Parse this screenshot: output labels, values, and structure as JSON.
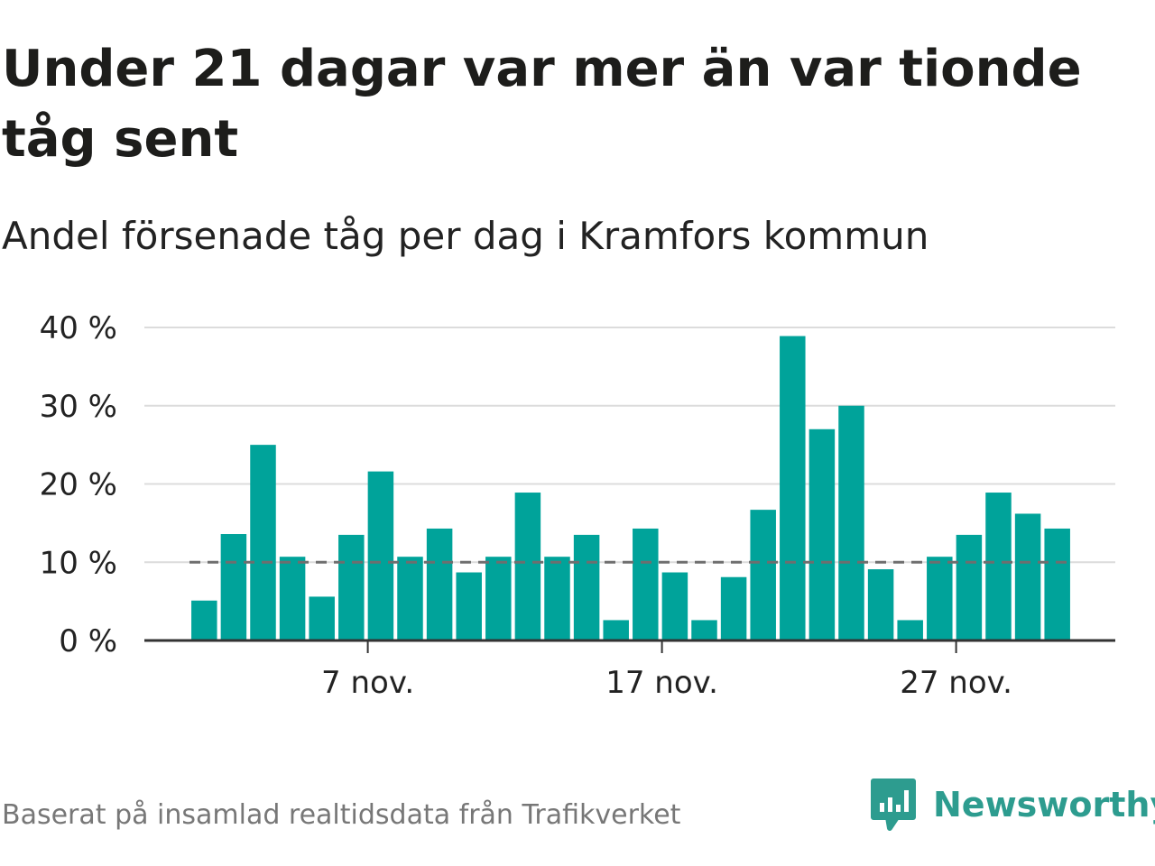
{
  "title": "Under 21 dagar var mer än var tionde tåg sent",
  "subtitle": "Andel försenade tåg per dag i Kramfors kommun",
  "source": "Baserat på insamlad realtidsdata från Trafikverket",
  "brand": {
    "name": "Newsworthy",
    "icon": "newsworthy-logo-icon",
    "color": "#2d9c8f"
  },
  "chart_data": {
    "type": "bar",
    "x": [
      "2023-11-01",
      "2023-11-02",
      "2023-11-03",
      "2023-11-04",
      "2023-11-05",
      "2023-11-06",
      "2023-11-07",
      "2023-11-08",
      "2023-11-09",
      "2023-11-10",
      "2023-11-11",
      "2023-11-12",
      "2023-11-13",
      "2023-11-14",
      "2023-11-15",
      "2023-11-16",
      "2023-11-17",
      "2023-11-18",
      "2023-11-19",
      "2023-11-20",
      "2023-11-21",
      "2023-11-22",
      "2023-11-23",
      "2023-11-24",
      "2023-11-25",
      "2023-11-26",
      "2023-11-27",
      "2023-11-28",
      "2023-11-29",
      "2023-11-30"
    ],
    "values": [
      5.1,
      13.6,
      25,
      10.7,
      5.6,
      13.5,
      21.6,
      10.7,
      14.3,
      8.7,
      10.7,
      18.9,
      10.7,
      13.5,
      2.6,
      14.3,
      8.7,
      2.6,
      8.1,
      16.7,
      38.9,
      27,
      30,
      9.1,
      2.6,
      10.7,
      13.5,
      18.9,
      16.2,
      14.3
    ],
    "ylim": [
      0,
      40
    ],
    "yticks": [
      0,
      10,
      20,
      30,
      40
    ],
    "ytick_labels": [
      "0 %",
      "10 %",
      "20 %",
      "30 %",
      "40 %"
    ],
    "xtick_dates": [
      "2023-11-07",
      "2023-11-17",
      "2023-11-27"
    ],
    "xtick_labels": [
      "7 nov.",
      "17 nov.",
      "27 nov."
    ],
    "reference_line": 10,
    "grid": true,
    "bar_color": "#00a39a",
    "reference_line_color": "#6e6e6e",
    "xlabel": "",
    "ylabel": ""
  }
}
